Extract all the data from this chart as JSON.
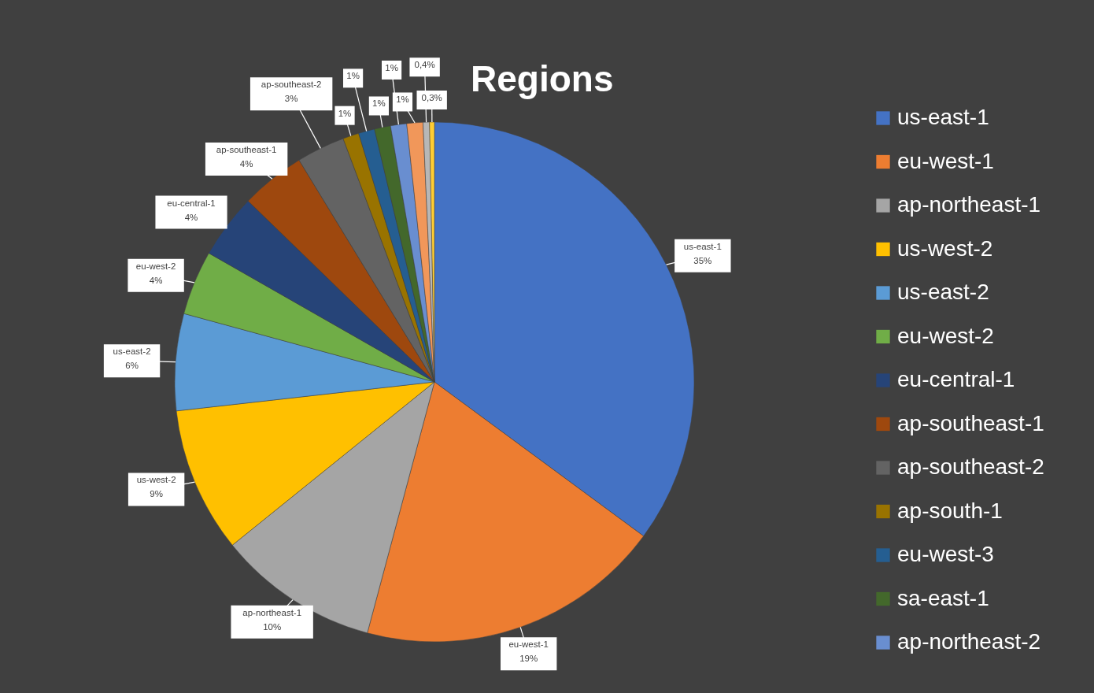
{
  "chart_data": {
    "type": "pie",
    "title": "Regions",
    "categories": [
      "us-east-1",
      "eu-west-1",
      "ap-northeast-1",
      "us-west-2",
      "us-east-2",
      "eu-west-2",
      "eu-central-1",
      "ap-southeast-1",
      "ap-southeast-2",
      "ap-south-1",
      "eu-west-3",
      "sa-east-1",
      "ap-northeast-2",
      null,
      null,
      null
    ],
    "values": [
      35,
      19,
      10,
      9,
      6,
      4,
      4,
      4,
      3,
      1,
      1,
      1,
      1,
      1,
      0.4,
      0.3
    ],
    "value_labels": [
      "us-east-1\n35%",
      "eu-west-1\n19%",
      "ap-northeast-1\n10%",
      "us-west-2\n9%",
      "us-east-2\n6%",
      "eu-west-2\n4%",
      "eu-central-1\n4%",
      "ap-southeast-1\n4%",
      "ap-southeast-2\n3%",
      "1%",
      "1%",
      "1%",
      "1%",
      "1%",
      "0,4%",
      "0,3%"
    ],
    "colors": [
      "#4472c4",
      "#ed7d31",
      "#a5a5a5",
      "#ffc000",
      "#5b9bd5",
      "#70ad47",
      "#264478",
      "#9e480e",
      "#636363",
      "#997300",
      "#255e91",
      "#43682b",
      "#698ed0",
      "#f1975a",
      "#b7b7b7",
      "#ffcd33"
    ],
    "legend": "right"
  }
}
